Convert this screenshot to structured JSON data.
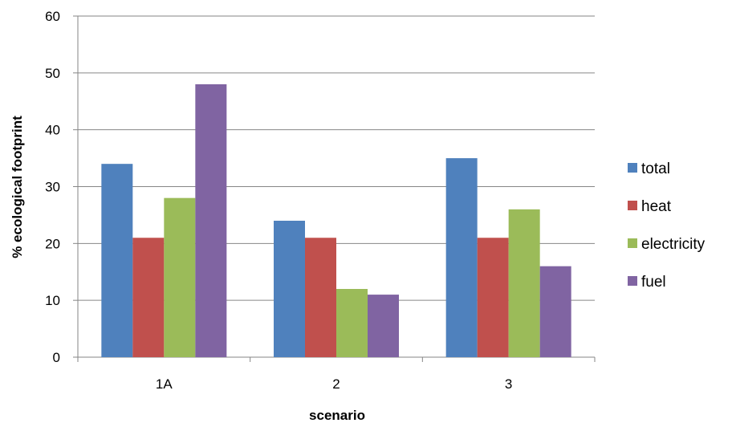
{
  "chart_data": {
    "type": "bar",
    "title": "",
    "xlabel": "scenario",
    "ylabel": "% ecological footprint",
    "categories": [
      "1A",
      "2",
      "3"
    ],
    "ylim": [
      0,
      60
    ],
    "yticks": [
      0,
      10,
      20,
      30,
      40,
      50,
      60
    ],
    "ytick_labels": [
      "0",
      "10",
      "20",
      "30",
      "40",
      "50",
      "60"
    ],
    "grid": true,
    "legend_position": "right",
    "series": [
      {
        "name": "total",
        "color": "#4F81BD",
        "values": [
          34,
          24,
          35
        ]
      },
      {
        "name": "heat",
        "color": "#C0504D",
        "values": [
          21,
          21,
          21
        ]
      },
      {
        "name": "electricity",
        "color": "#9BBB59",
        "values": [
          28,
          12,
          26
        ]
      },
      {
        "name": "fuel",
        "color": "#8064A2",
        "values": [
          48,
          11,
          16
        ]
      }
    ]
  }
}
